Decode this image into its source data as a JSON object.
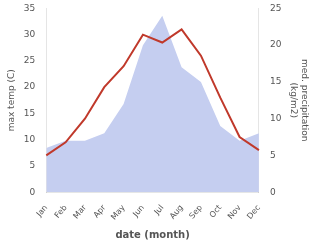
{
  "chart_data": {
    "type": "line",
    "xlabel": "date (month)",
    "ylabel": "max temp (C)",
    "y2label": "med. precipitation\n(kg/m2)",
    "categories": [
      "Jan",
      "Feb",
      "Mar",
      "Apr",
      "May",
      "Jun",
      "Jul",
      "Aug",
      "Sep",
      "Oct",
      "Nov",
      "Dec"
    ],
    "series": [
      {
        "type": "area",
        "color": "#c5cef0",
        "axis": "y2",
        "values": [
          6,
          7,
          7,
          8,
          12,
          20,
          24,
          17,
          15,
          9,
          7,
          8
        ]
      },
      {
        "type": "line",
        "color": "#c0392b",
        "values": [
          7,
          9.5,
          14,
          20,
          24,
          30,
          28.5,
          31,
          26,
          18,
          10.5,
          8
        ]
      }
    ],
    "ylim": [
      0,
      35
    ],
    "yticks": [
      0,
      5,
      10,
      15,
      20,
      25,
      30,
      35
    ],
    "y2lim": [
      0,
      25
    ],
    "y2ticks": [
      0,
      5,
      10,
      15,
      20,
      25
    ],
    "grid": false
  }
}
